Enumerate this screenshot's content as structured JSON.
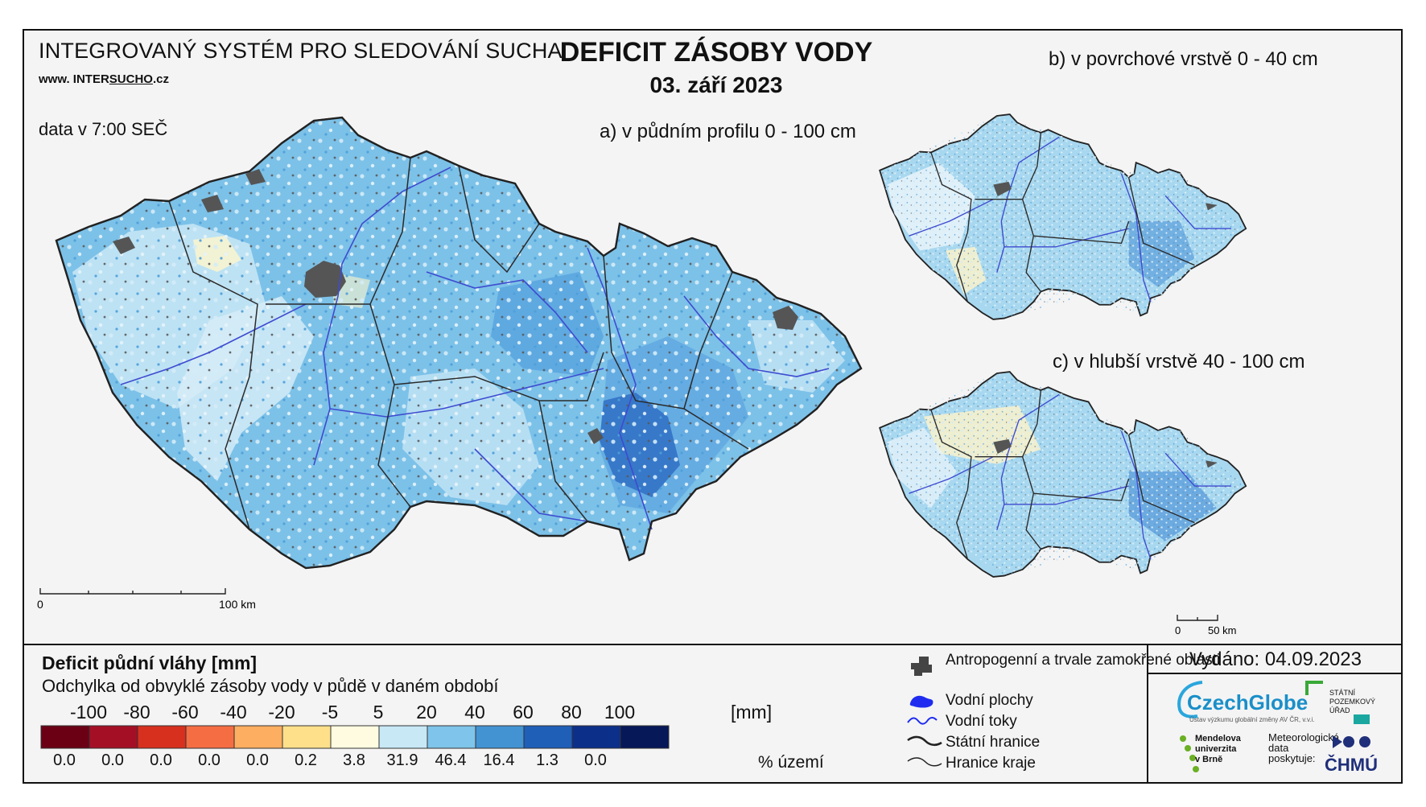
{
  "header": {
    "org_title": "INTEGROVANÝ SYSTÉM PRO SLEDOVÁNÍ SUCHA",
    "url_prefix": "www. INTER",
    "url_underlined": "SUCHO",
    "url_suffix": ".cz",
    "data_time": "data v 7:00 SEČ",
    "title": "DEFICIT ZÁSOBY VODY",
    "date": "03. září 2023"
  },
  "maps": {
    "a_label": "a) v půdním profilu 0 - 100 cm",
    "b_label": "b) v povrchové vrstvě 0 - 40 cm",
    "c_label": "c) v hlubší vrstvě 40 - 100 cm",
    "scale_main": {
      "start": "0",
      "end": "100 km"
    },
    "scale_small": {
      "start": "0",
      "end": "50 km"
    }
  },
  "legend": {
    "title": "Deficit půdní vláhy  [mm]",
    "subtitle": "Odchylka od obvyklé zásoby vody v půdě v daném období",
    "unit": "[mm]",
    "pct_unit": "% území",
    "ticks": [
      "-100",
      "-80",
      "-60",
      "-40",
      "-20",
      "-5",
      "5",
      "20",
      "40",
      "60",
      "80",
      "100"
    ],
    "colors": [
      "#6b0015",
      "#a50f26",
      "#d7301f",
      "#f46d43",
      "#fdae61",
      "#fee08b",
      "#fffbe0",
      "#c8e8f5",
      "#7fc4ea",
      "#4393d3",
      "#1f5fb8",
      "#0c2f8a",
      "#061858"
    ],
    "percentages": [
      "0.0",
      "0.0",
      "0.0",
      "0.0",
      "0.0",
      "0.2",
      "3.8",
      "31.9",
      "46.4",
      "16.4",
      "1.3",
      "0.0",
      ""
    ]
  },
  "symbols": {
    "items": [
      {
        "icon": "urban-area-icon",
        "label": "Antropogenní a trvale zamokřené oblasti"
      },
      {
        "icon": "water-body-icon",
        "label": "Vodní plochy"
      },
      {
        "icon": "river-icon",
        "label": "Vodní toky"
      },
      {
        "icon": "state-border-icon",
        "label": "Státní hranice"
      },
      {
        "icon": "region-border-icon",
        "label": "Hranice kraje"
      }
    ]
  },
  "issued": "Vydáno: 04.09.2023",
  "logos": {
    "czechglobe": "CzechGlobe",
    "czechglobe_sub": "Ústav výzkumu globální změny AV ČR, v.v.i.",
    "spu_lines": [
      "STÁTNÍ",
      "POZEMKOVÝ",
      "ÚŘAD"
    ],
    "mendel_lines": [
      "Mendelova",
      "univerzita",
      "v Brně"
    ],
    "meteo_lines": [
      "Meteorologická",
      "data",
      "poskytuje:"
    ],
    "chmu": "ČHMÚ"
  }
}
